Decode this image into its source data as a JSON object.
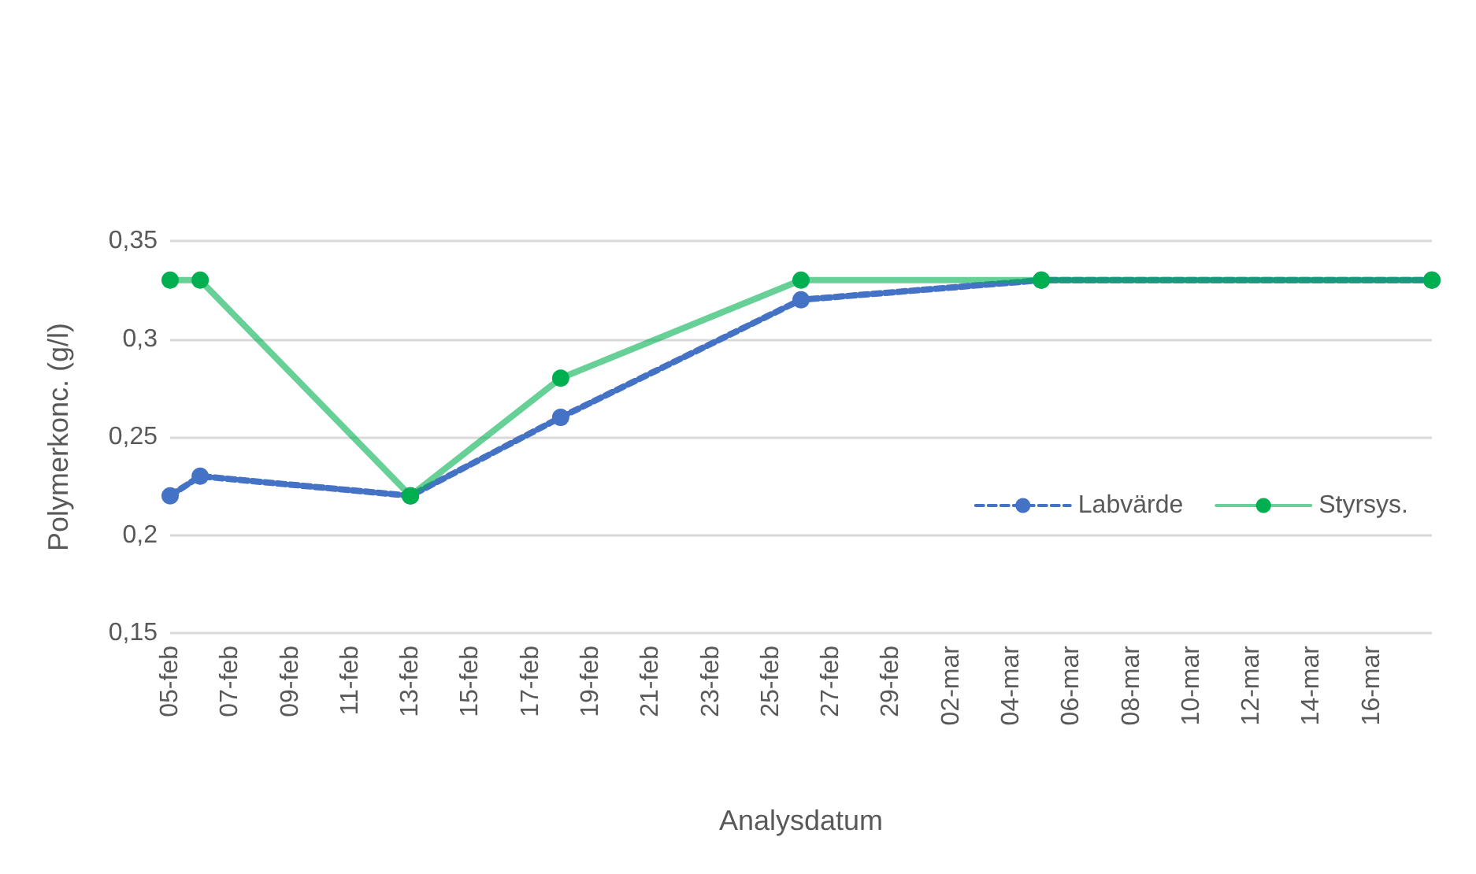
{
  "chart_data": {
    "type": "line",
    "xlabel": "Analysdatum",
    "ylabel": "Polymerkonc. (g/l)",
    "x": [
      "--02-05",
      "--02-06",
      "--02-13",
      "--02-18",
      "--02-26",
      "--03-05",
      "--03-18"
    ],
    "series": [
      {
        "name": "Labvärde",
        "color": "#4472c4",
        "line_style": "dashed",
        "values": [
          0.22,
          0.23,
          0.22,
          0.26,
          0.32,
          0.33,
          0.33
        ]
      },
      {
        "name": "Styrsys.",
        "color": "#00b050",
        "values": [
          0.33,
          0.33,
          0.22,
          0.28,
          0.33,
          0.33,
          0.33
        ]
      }
    ],
    "xlim": [
      "--02-05",
      "--03-18"
    ],
    "xticks": [
      {
        "value": "--02-05",
        "label": "05-feb"
      },
      {
        "value": "--02-07",
        "label": "07-feb"
      },
      {
        "value": "--02-09",
        "label": "09-feb"
      },
      {
        "value": "--02-11",
        "label": "11-feb"
      },
      {
        "value": "--02-13",
        "label": "13-feb"
      },
      {
        "value": "--02-15",
        "label": "15-feb"
      },
      {
        "value": "--02-17",
        "label": "17-feb"
      },
      {
        "value": "--02-19",
        "label": "19-feb"
      },
      {
        "value": "--02-21",
        "label": "21-feb"
      },
      {
        "value": "--02-23",
        "label": "23-feb"
      },
      {
        "value": "--02-25",
        "label": "25-feb"
      },
      {
        "value": "--02-27",
        "label": "27-feb"
      },
      {
        "value": "--02-29",
        "label": "29-feb"
      },
      {
        "value": "--03-02",
        "label": "02-mar"
      },
      {
        "value": "--03-04",
        "label": "04-mar"
      },
      {
        "value": "--03-06",
        "label": "06-mar"
      },
      {
        "value": "--03-08",
        "label": "08-mar"
      },
      {
        "value": "--03-10",
        "label": "10-mar"
      },
      {
        "value": "--03-12",
        "label": "12-mar"
      },
      {
        "value": "--03-14",
        "label": "14-mar"
      },
      {
        "value": "--03-16",
        "label": "16-mar"
      }
    ],
    "ylim": [
      0.15,
      0.35
    ],
    "yticks": [
      {
        "value": 0.15,
        "label": "0,15"
      },
      {
        "value": 0.2,
        "label": "0,2"
      },
      {
        "value": 0.25,
        "label": "0,25"
      },
      {
        "value": 0.3,
        "label": "0,3"
      },
      {
        "value": 0.35,
        "label": "0,35"
      }
    ],
    "grid": "y",
    "legend": "right",
    "marker": "circle"
  }
}
